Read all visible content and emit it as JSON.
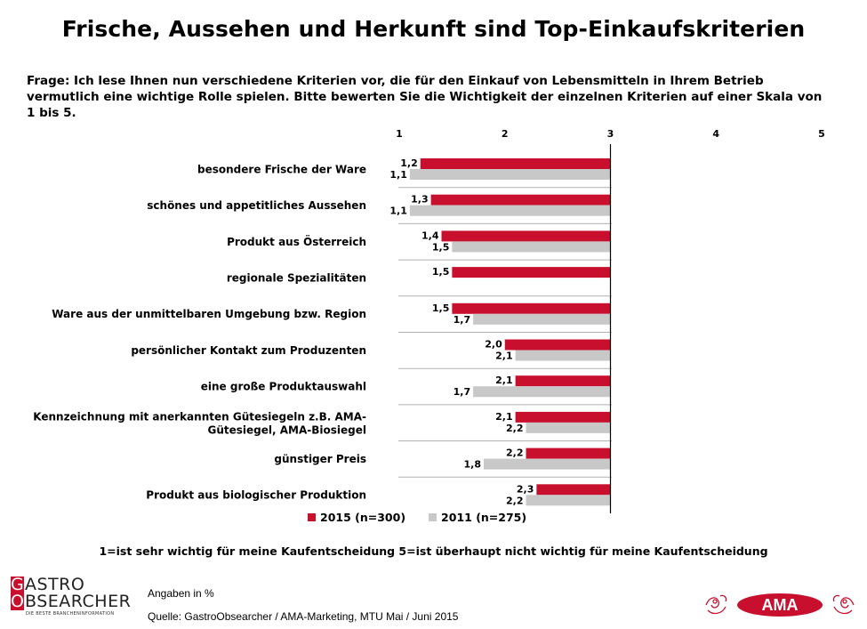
{
  "title": "Frische, Aussehen und Herkunft sind Top-Einkaufskriterien",
  "question": "Frage: Ich lese Ihnen nun verschiedene Kriterien vor, die für den Einkauf von Lebensmitteln in Ihrem Betrieb vermutlich eine wichtige Rolle spielen. Bitte bewerten Sie die Wichtigkeit der einzelnen Kriterien auf einer Skala von 1 bis 5.",
  "legend": {
    "series_2015": "2015 (n=300)",
    "series_2011": "2011 (n=275)"
  },
  "scale_note": "1=ist sehr wichtig für meine Kaufentscheidung  5=ist überhaupt nicht wichtig für meine Kaufentscheidung",
  "notes": {
    "unit": "Angaben in %",
    "source": "Quelle: GastroObsearcher / AMA-Marketing, MTU Mai / Juni 2015"
  },
  "logos": {
    "gastro_line1": "GASTRO",
    "gastro_line2": "OBSEARCHER",
    "gastro_tagline": "DIE BESTE BRANCHENINFORMATION",
    "ama": "AMA"
  },
  "colors": {
    "series_2015": "#c8102e",
    "series_2011": "#c8c8c8",
    "axis": "#000000"
  },
  "chart_data": {
    "type": "bar",
    "orientation": "horizontal",
    "bar_base": 3,
    "xlim": [
      1,
      5
    ],
    "xticks": [
      "1",
      "2",
      "3",
      "4",
      "5"
    ],
    "categories": [
      "besondere Frische der Ware",
      "schönes und appetitliches Aussehen",
      "Produkt aus Österreich",
      "regionale Spezialitäten",
      "Ware aus der unmittelbaren Umgebung bzw. Region",
      "persönlicher Kontakt zum Produzenten",
      "eine große Produktauswahl",
      "Kennzeichnung mit anerkannten Gütesiegeln z.B. AMA-Gütesiegel, AMA-Biosiegel",
      "günstiger Preis",
      "Produkt aus biologischer Produktion"
    ],
    "category_lines": [
      [
        "besondere Frische der Ware"
      ],
      [
        "schönes und appetitliches Aussehen"
      ],
      [
        "Produkt aus Österreich"
      ],
      [
        "regionale Spezialitäten"
      ],
      [
        "Ware aus der unmittelbaren Umgebung bzw. Region"
      ],
      [
        "persönlicher Kontakt zum Produzenten"
      ],
      [
        "eine große Produktauswahl"
      ],
      [
        "Kennzeichnung mit anerkannten Gütesiegeln z.B. AMA-",
        "Gütesiegel, AMA-Biosiegel"
      ],
      [
        "günstiger Preis"
      ],
      [
        "Produkt aus biologischer Produktion"
      ]
    ],
    "series": [
      {
        "name": "2015 (n=300)",
        "values": [
          1.2,
          1.3,
          1.4,
          1.5,
          1.5,
          2.0,
          2.1,
          2.1,
          2.2,
          2.3
        ],
        "labels": [
          "1,2",
          "1,3",
          "1,4",
          "1,5",
          "1,5",
          "2,0",
          "2,1",
          "2,1",
          "2,2",
          "2,3"
        ]
      },
      {
        "name": "2011 (n=275)",
        "values": [
          1.1,
          1.1,
          1.5,
          null,
          1.7,
          2.1,
          1.7,
          2.2,
          1.8,
          2.2
        ],
        "labels": [
          "1,1",
          "1,1",
          "1,5",
          null,
          "1,7",
          "2,1",
          "1,7",
          "2,2",
          "1,8",
          "2,2"
        ]
      }
    ]
  }
}
